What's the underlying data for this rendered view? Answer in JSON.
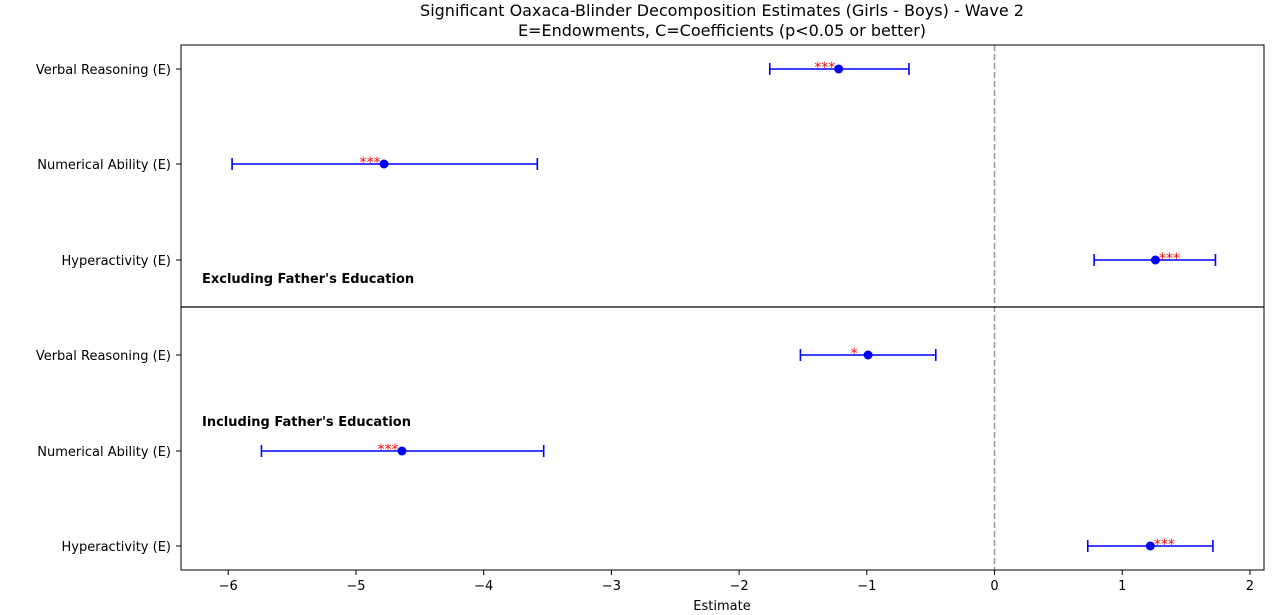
{
  "chart_data": {
    "type": "scatter",
    "title": "Significant Oaxaca-Blinder Decomposition Estimates (Girls - Boys) - Wave 2",
    "subtitle": "E=Endowments, C=Coefficients (p<0.05 or better)",
    "xlabel": "Estimate",
    "xlim": [
      -6.37,
      2.11
    ],
    "xticks": [
      -6,
      -5,
      -4,
      -3,
      -2,
      -1,
      0,
      1,
      2
    ],
    "xtick_labels": [
      "−6",
      "−5",
      "−4",
      "−3",
      "−2",
      "−1",
      "0",
      "1",
      "2"
    ],
    "reference_line": 0,
    "grid": false,
    "colors": {
      "marker": "#0000ff",
      "significance": "#ff0000",
      "reference": "#999999"
    },
    "panels": [
      {
        "note": "Excluding Father's Education",
        "rows": [
          {
            "label": "Verbal Reasoning (E)",
            "estimate": -1.22,
            "ci_low": -1.76,
            "ci_high": -0.67,
            "sig": "***"
          },
          {
            "label": "Numerical Ability (E)",
            "estimate": -4.78,
            "ci_low": -5.97,
            "ci_high": -3.58,
            "sig": "***"
          },
          {
            "label": "Hyperactivity (E)",
            "estimate": 1.26,
            "ci_low": 0.78,
            "ci_high": 1.73,
            "sig": "***"
          }
        ]
      },
      {
        "note": "Including Father's Education",
        "rows": [
          {
            "label": "Verbal Reasoning (E)",
            "estimate": -0.99,
            "ci_low": -1.52,
            "ci_high": -0.46,
            "sig": "*"
          },
          {
            "label": "Numerical Ability (E)",
            "estimate": -4.64,
            "ci_low": -5.74,
            "ci_high": -3.53,
            "sig": "***"
          },
          {
            "label": "Hyperactivity (E)",
            "estimate": 1.22,
            "ci_low": 0.73,
            "ci_high": 1.71,
            "sig": "***"
          }
        ]
      }
    ]
  }
}
